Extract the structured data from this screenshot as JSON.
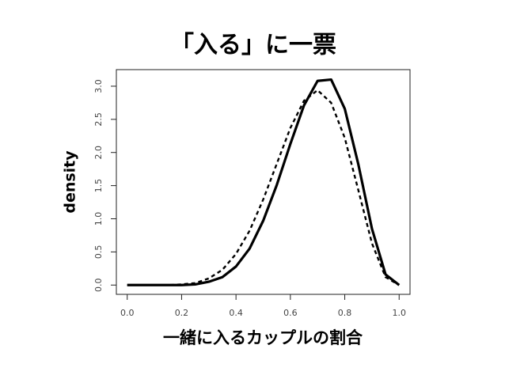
{
  "chart_data": {
    "type": "line",
    "title": "「入る」に一票",
    "x_label": "一緒に入るカップルの割合",
    "y_label": "density",
    "x": [
      0,
      0.05,
      0.1,
      0.15,
      0.2,
      0.25,
      0.3,
      0.35,
      0.4,
      0.45,
      0.5,
      0.55,
      0.6,
      0.65,
      0.7,
      0.75,
      0.8,
      0.85,
      0.9,
      0.95,
      1
    ],
    "series": [
      {
        "color": "#000000",
        "line_style": "solid",
        "line_width": 3.2,
        "values": [
          0,
          0,
          0,
          0,
          0,
          0.01,
          0.05,
          0.12,
          0.28,
          0.55,
          0.97,
          1.51,
          2.13,
          2.71,
          3.08,
          3.1,
          2.66,
          1.82,
          0.85,
          0.16,
          0
        ]
      },
      {
        "color": "#000000",
        "line_style": "dashed",
        "line_width": 2.4,
        "values": [
          0,
          0,
          0,
          0,
          0.01,
          0.03,
          0.1,
          0.23,
          0.47,
          0.82,
          1.29,
          1.83,
          2.37,
          2.78,
          2.94,
          2.75,
          2.22,
          1.43,
          0.63,
          0.12,
          0
        ]
      }
    ],
    "xlim": [
      -0.04,
      1.04
    ],
    "ylim": [
      -0.14,
      3.25
    ],
    "xticks": [
      {
        "value": 0,
        "label": "0.0"
      },
      0.2,
      0.4,
      0.6,
      0.8,
      {
        "value": 1,
        "label": "1.0"
      }
    ],
    "yticks": [
      {
        "value": 0,
        "label": "0.0"
      },
      0.5,
      {
        "value": 1,
        "label": "1.0"
      },
      1.5,
      {
        "value": 2,
        "label": "2.0"
      },
      2.5,
      {
        "value": 3,
        "label": "3.0"
      }
    ],
    "grid": false
  }
}
